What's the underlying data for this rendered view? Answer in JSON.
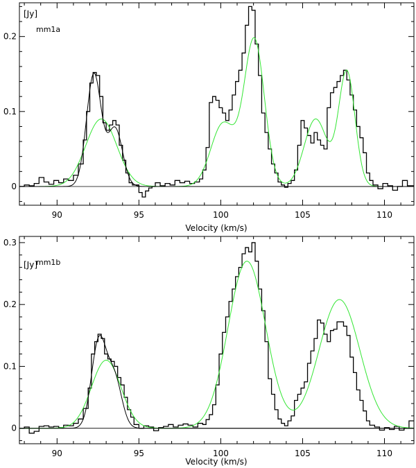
{
  "colors": {
    "observed": "#000000",
    "fit_green": "#33e633",
    "fit_black": "#000000",
    "axes": "#000000"
  },
  "chart_data": [
    {
      "type": "line",
      "title": "",
      "panel_label": "mm1a",
      "xlabel": "Velocity (km/s)",
      "ylabel": "[Jy]",
      "xlim": [
        87.7,
        111.8
      ],
      "ylim": [
        -0.025,
        0.245
      ],
      "x_ticks": [
        90,
        95,
        100,
        105,
        110
      ],
      "x_tick_labels": [
        "90",
        "95",
        "100",
        "105",
        "110"
      ],
      "y_ticks": [
        0,
        0.1,
        0.2
      ],
      "y_tick_labels": [
        "0",
        "0.1",
        "0.2"
      ],
      "grid": false,
      "legend": "none",
      "baseline": 0,
      "series": [
        {
          "style": "step",
          "x": [
            87.7,
            88.0,
            88.3,
            88.6,
            88.9,
            89.2,
            89.5,
            89.8,
            90.1,
            90.4,
            90.7,
            91.0,
            91.3,
            91.6,
            91.8,
            92.0,
            92.2,
            92.4,
            92.6,
            92.8,
            93.0,
            93.2,
            93.4,
            93.6,
            93.8,
            94.0,
            94.2,
            94.4,
            94.6,
            94.8,
            95.0,
            95.2,
            95.4,
            95.6,
            95.8,
            96.0,
            96.3,
            96.6,
            96.9,
            97.2,
            97.5,
            97.8,
            98.1,
            98.4,
            98.7,
            98.9,
            99.1,
            99.3,
            99.5,
            99.7,
            99.9,
            100.1,
            100.3,
            100.5,
            100.7,
            100.9,
            101.1,
            101.3,
            101.5,
            101.7,
            101.9,
            102.1,
            102.3,
            102.5,
            102.7,
            102.9,
            103.1,
            103.3,
            103.5,
            103.7,
            103.9,
            104.1,
            104.3,
            104.5,
            104.7,
            104.9,
            105.1,
            105.3,
            105.5,
            105.7,
            105.9,
            106.1,
            106.3,
            106.5,
            106.7,
            106.9,
            107.1,
            107.3,
            107.5,
            107.7,
            107.9,
            108.1,
            108.3,
            108.5,
            108.7,
            108.9,
            109.1,
            109.3,
            109.6,
            109.9,
            110.2,
            110.5,
            110.8,
            111.1,
            111.4
          ],
          "values": [
            0.0,
            0.002,
            0.001,
            0.004,
            0.012,
            0.006,
            0.003,
            0.008,
            0.005,
            0.01,
            0.008,
            0.015,
            0.03,
            0.062,
            0.1,
            0.138,
            0.152,
            0.148,
            0.12,
            0.085,
            0.075,
            0.082,
            0.088,
            0.082,
            0.055,
            0.035,
            0.018,
            0.005,
            0.002,
            0.002,
            -0.008,
            -0.014,
            -0.006,
            -0.002,
            0.0,
            0.005,
            0.001,
            0.004,
            0.002,
            0.008,
            0.005,
            0.007,
            0.004,
            0.006,
            0.01,
            0.022,
            0.052,
            0.112,
            0.12,
            0.115,
            0.105,
            0.098,
            0.088,
            0.102,
            0.122,
            0.14,
            0.155,
            0.178,
            0.215,
            0.24,
            0.235,
            0.19,
            0.148,
            0.098,
            0.072,
            0.05,
            0.03,
            0.018,
            0.006,
            0.002,
            -0.001,
            0.004,
            0.008,
            0.022,
            0.055,
            0.088,
            0.078,
            0.068,
            0.058,
            0.072,
            0.062,
            0.055,
            0.05,
            0.105,
            0.125,
            0.132,
            0.14,
            0.148,
            0.155,
            0.142,
            0.122,
            0.102,
            0.08,
            0.065,
            0.045,
            0.018,
            0.008,
            0.002,
            -0.003,
            0.004,
            0.001,
            -0.005,
            0.0,
            0.008,
            0.001
          ]
        },
        {
          "style": "smooth",
          "color": "green",
          "components": [
            [
              92.7,
              0.09,
              0.95
            ],
            [
              100.15,
              0.084,
              0.75
            ],
            [
              102.05,
              0.195,
              0.62
            ],
            [
              105.8,
              0.09,
              0.7
            ],
            [
              107.7,
              0.153,
              0.5
            ]
          ]
        },
        {
          "style": "smooth",
          "color": "black",
          "components": [
            [
              92.25,
              0.15,
              0.45
            ],
            [
              93.55,
              0.077,
              0.45
            ]
          ]
        }
      ]
    },
    {
      "type": "line",
      "title": "",
      "panel_label": "mm1b",
      "xlabel": "Velocity (km/s)",
      "ylabel": "[Jy]",
      "xlim": [
        87.7,
        111.8
      ],
      "ylim": [
        -0.025,
        0.31
      ],
      "x_ticks": [
        90,
        95,
        100,
        105,
        110
      ],
      "x_tick_labels": [
        "90",
        "95",
        "100",
        "105",
        "110"
      ],
      "y_ticks": [
        0,
        0.1,
        0.2,
        0.3
      ],
      "y_tick_labels": [
        "0",
        "0.1",
        "0.2",
        "0.3"
      ],
      "grid": false,
      "legend": "none",
      "baseline": 0,
      "series": [
        {
          "style": "step",
          "x": [
            87.7,
            88.0,
            88.3,
            88.6,
            88.9,
            89.2,
            89.5,
            89.8,
            90.1,
            90.4,
            90.7,
            91.0,
            91.3,
            91.6,
            91.9,
            92.1,
            92.3,
            92.5,
            92.7,
            92.9,
            93.1,
            93.3,
            93.5,
            93.7,
            93.9,
            94.1,
            94.3,
            94.5,
            94.7,
            95.0,
            95.3,
            95.6,
            95.9,
            96.2,
            96.5,
            96.8,
            97.1,
            97.4,
            97.7,
            98.0,
            98.3,
            98.6,
            98.9,
            99.1,
            99.3,
            99.5,
            99.7,
            99.9,
            100.1,
            100.3,
            100.5,
            100.7,
            100.9,
            101.1,
            101.3,
            101.5,
            101.7,
            101.9,
            102.1,
            102.3,
            102.5,
            102.7,
            102.9,
            103.1,
            103.3,
            103.5,
            103.7,
            103.9,
            104.1,
            104.3,
            104.5,
            104.7,
            104.9,
            105.1,
            105.3,
            105.5,
            105.7,
            105.9,
            106.1,
            106.3,
            106.5,
            106.7,
            106.9,
            107.1,
            107.3,
            107.5,
            107.7,
            107.9,
            108.1,
            108.3,
            108.5,
            108.7,
            108.9,
            109.1,
            109.4,
            109.7,
            110.0,
            110.3,
            110.6,
            110.9,
            111.2,
            111.5
          ],
          "values": [
            0.0,
            0.002,
            -0.008,
            -0.005,
            0.003,
            0.004,
            0.002,
            0.003,
            0.001,
            0.005,
            0.004,
            0.008,
            0.015,
            0.032,
            0.065,
            0.12,
            0.14,
            0.152,
            0.145,
            0.12,
            0.112,
            0.108,
            0.1,
            0.082,
            0.07,
            0.05,
            0.03,
            0.018,
            0.006,
            0.0,
            0.004,
            0.002,
            -0.004,
            0.001,
            0.003,
            0.006,
            0.002,
            0.005,
            0.007,
            0.005,
            0.002,
            0.008,
            0.006,
            0.014,
            0.022,
            0.038,
            0.07,
            0.12,
            0.155,
            0.18,
            0.205,
            0.225,
            0.245,
            0.26,
            0.282,
            0.292,
            0.285,
            0.3,
            0.27,
            0.225,
            0.19,
            0.14,
            0.08,
            0.055,
            0.03,
            0.015,
            0.008,
            0.004,
            0.012,
            0.02,
            0.045,
            0.055,
            0.065,
            0.075,
            0.105,
            0.125,
            0.145,
            0.175,
            0.17,
            0.152,
            0.14,
            0.158,
            0.16,
            0.172,
            0.172,
            0.165,
            0.15,
            0.115,
            0.09,
            0.062,
            0.045,
            0.028,
            0.012,
            0.005,
            0.002,
            -0.003,
            0.001,
            -0.002,
            0.003,
            -0.003,
            0.0,
            0.012
          ]
        },
        {
          "style": "smooth",
          "color": "green",
          "components": [
            [
              93.0,
              0.11,
              0.9
            ],
            [
              101.6,
              0.27,
              1.15
            ],
            [
              107.25,
              0.208,
              1.25
            ]
          ]
        },
        {
          "style": "smooth",
          "color": "black",
          "components": [
            [
              92.55,
              0.14,
              0.45
            ],
            [
              93.5,
              0.08,
              0.45
            ]
          ]
        }
      ]
    }
  ]
}
